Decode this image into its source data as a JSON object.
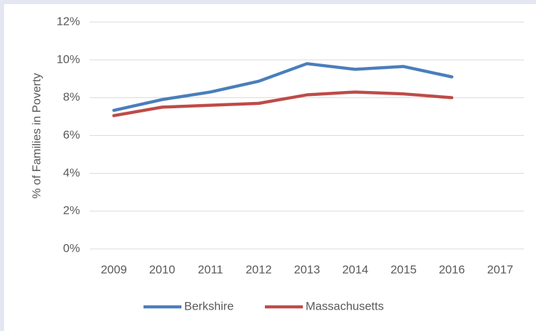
{
  "chart_data": {
    "type": "line",
    "y_label": "% of Families in Poverty",
    "categories": [
      "2009",
      "2010",
      "2011",
      "2012",
      "2013",
      "2014",
      "2015",
      "2016",
      "2017"
    ],
    "series": [
      {
        "name": "Berkshire",
        "color": "#4a7ebb",
        "values": [
          7.33,
          7.9,
          8.3,
          8.87,
          9.8,
          9.5,
          9.65,
          9.1,
          null
        ]
      },
      {
        "name": "Massachusetts",
        "color": "#be4b48",
        "values": [
          7.05,
          7.5,
          7.6,
          7.7,
          8.15,
          8.3,
          8.2,
          8.0,
          null
        ]
      }
    ],
    "ylim": [
      0,
      12
    ],
    "yticks": [
      {
        "value": 0,
        "label": "0%"
      },
      {
        "value": 2,
        "label": "2%"
      },
      {
        "value": 4,
        "label": "4%"
      },
      {
        "value": 6,
        "label": "6%"
      },
      {
        "value": 8,
        "label": "8%"
      },
      {
        "value": 10,
        "label": "10%"
      },
      {
        "value": 12,
        "label": "12%"
      }
    ],
    "grid": true,
    "legend": "bottom"
  }
}
